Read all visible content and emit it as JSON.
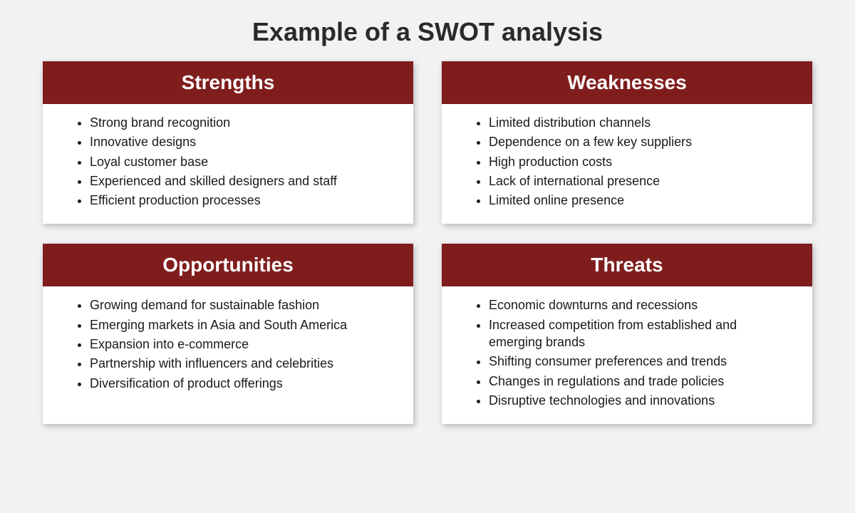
{
  "title": "Example of a SWOT analysis",
  "colors": {
    "page_bg": "#f2f2f2",
    "card_bg": "#ffffff",
    "header_bg": "#7f1d1d",
    "header_text": "#ffffff",
    "title_text": "#2a2a2a",
    "item_text": "#1a1a1a",
    "shadow": "rgba(0,0,0,0.25)"
  },
  "typography": {
    "title_fontsize": 36,
    "header_fontsize": 28,
    "item_fontsize": 18,
    "font_family": "Arial, Helvetica, sans-serif"
  },
  "layout": {
    "columns": 2,
    "rows": 2,
    "gap_row": 28,
    "gap_col": 40,
    "card_shadow": "2px 3px 8px"
  },
  "quadrants": [
    {
      "key": "strengths",
      "label": "Strengths",
      "items": [
        "Strong brand recognition",
        "Innovative designs",
        "Loyal customer base",
        "Experienced and skilled designers and staff",
        "Efficient production processes"
      ]
    },
    {
      "key": "weaknesses",
      "label": "Weaknesses",
      "items": [
        "Limited distribution channels",
        "Dependence on a few key suppliers",
        "High production costs",
        "Lack of international presence",
        "Limited online presence"
      ]
    },
    {
      "key": "opportunities",
      "label": "Opportunities",
      "items": [
        "Growing demand for sustainable fashion",
        "Emerging markets in Asia and South America",
        "Expansion into e-commerce",
        "Partnership with influencers and celebrities",
        "Diversification of product offerings"
      ]
    },
    {
      "key": "threats",
      "label": "Threats",
      "items": [
        "Economic downturns and recessions",
        "Increased competition from established and emerging brands",
        "Shifting consumer preferences and trends",
        "Changes in regulations and trade policies",
        "Disruptive technologies and innovations"
      ]
    }
  ]
}
